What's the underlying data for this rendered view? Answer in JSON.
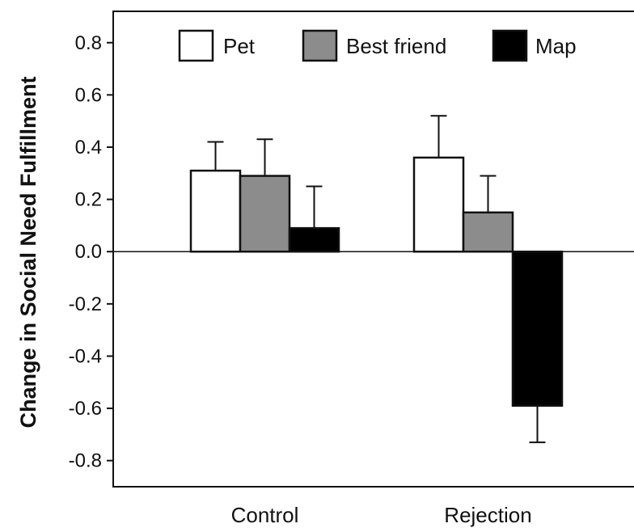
{
  "chart_data": {
    "type": "bar",
    "title": "",
    "xlabel": "",
    "ylabel": "Change in Social Need Fulfillment",
    "categories": [
      "Control",
      "Rejection"
    ],
    "series": [
      {
        "name": "Pet",
        "color": "#ffffff",
        "values": [
          0.31,
          0.36
        ],
        "error": [
          0.11,
          0.16
        ]
      },
      {
        "name": "Best friend",
        "color": "#8c8c8c",
        "values": [
          0.29,
          0.15
        ],
        "error": [
          0.14,
          0.14
        ]
      },
      {
        "name": "Map",
        "color": "#000000",
        "values": [
          0.09,
          -0.59
        ],
        "error": [
          0.16,
          0.14
        ]
      }
    ],
    "ylim": [
      -0.9,
      0.92
    ],
    "yticks": [
      0.8,
      0.6,
      0.4,
      0.2,
      0.0,
      -0.2,
      -0.4,
      -0.6,
      -0.8
    ],
    "ytick_labels": [
      "0.8",
      "0.6",
      "0.4",
      "0.2",
      "0.0",
      "-0.2",
      "-0.4",
      "-0.6",
      "-0.8"
    ],
    "grid": false,
    "legend_placement": "top"
  }
}
